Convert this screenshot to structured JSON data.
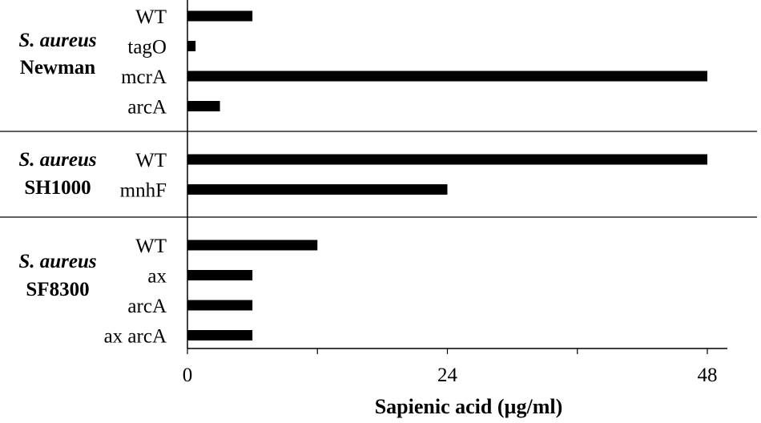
{
  "chart_data": {
    "type": "bar",
    "orientation": "horizontal",
    "xlabel": "Sapienic acid (µg/ml)",
    "xlim": [
      0,
      50
    ],
    "xticks": [
      0,
      24,
      48
    ],
    "grid": false,
    "groups": [
      {
        "species": "S. aureus",
        "strain": "Newman",
        "categories": [
          "WT",
          "tagO",
          "mcrA",
          "arcA"
        ],
        "values": [
          6,
          0.75,
          48,
          3
        ]
      },
      {
        "species": "S. aureus",
        "strain": "SH1000",
        "categories": [
          "WT",
          "mnhF"
        ],
        "values": [
          48,
          24
        ]
      },
      {
        "species": "S. aureus",
        "strain": "SF8300",
        "categories": [
          "WT",
          "ax",
          "arcA",
          "ax arcA"
        ],
        "values": [
          12,
          6,
          6,
          6
        ]
      }
    ]
  }
}
